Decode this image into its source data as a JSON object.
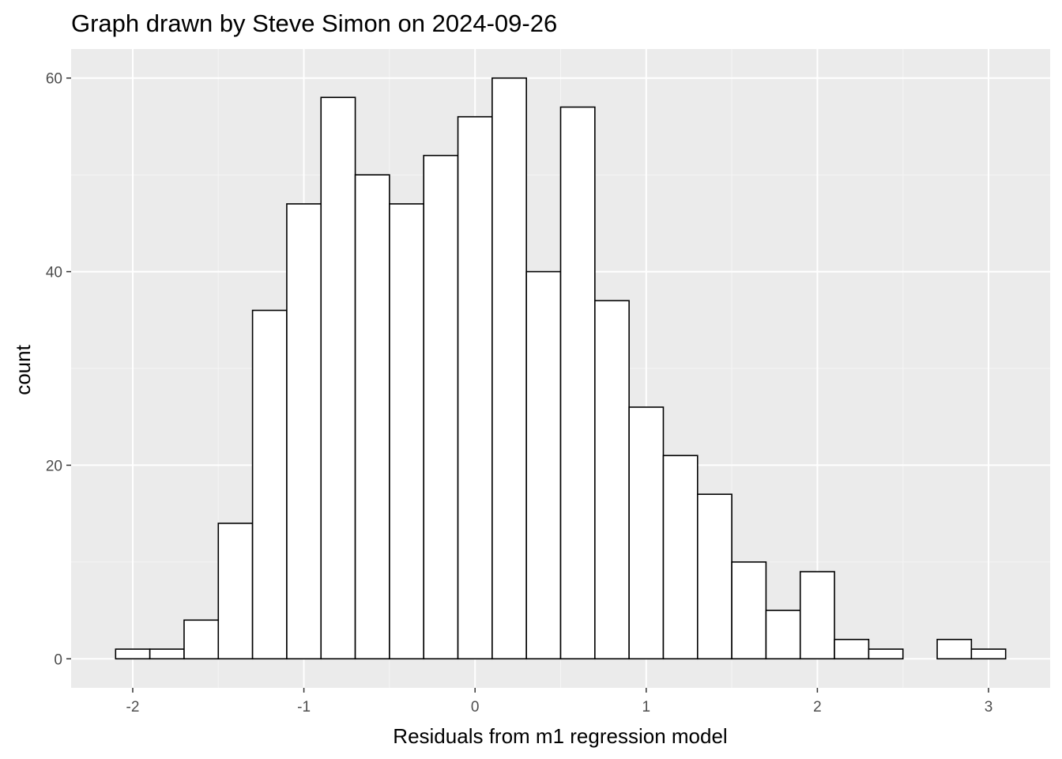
{
  "chart_data": {
    "type": "bar",
    "subtype": "histogram",
    "title": "Graph drawn by Steve Simon on 2024-09-26",
    "xlabel": "Residuals from m1 regression model",
    "ylabel": "count",
    "bin_width": 0.2,
    "bins": [
      {
        "x0": -2.1,
        "x1": -1.9,
        "count": 1
      },
      {
        "x0": -1.9,
        "x1": -1.7,
        "count": 1
      },
      {
        "x0": -1.7,
        "x1": -1.5,
        "count": 4
      },
      {
        "x0": -1.5,
        "x1": -1.3,
        "count": 14
      },
      {
        "x0": -1.3,
        "x1": -1.1,
        "count": 36
      },
      {
        "x0": -1.1,
        "x1": -0.9,
        "count": 47
      },
      {
        "x0": -0.9,
        "x1": -0.7,
        "count": 58
      },
      {
        "x0": -0.7,
        "x1": -0.5,
        "count": 50
      },
      {
        "x0": -0.5,
        "x1": -0.3,
        "count": 47
      },
      {
        "x0": -0.3,
        "x1": -0.1,
        "count": 52
      },
      {
        "x0": -0.1,
        "x1": 0.1,
        "count": 56
      },
      {
        "x0": 0.1,
        "x1": 0.3,
        "count": 60
      },
      {
        "x0": 0.3,
        "x1": 0.5,
        "count": 40
      },
      {
        "x0": 0.5,
        "x1": 0.7,
        "count": 57
      },
      {
        "x0": 0.7,
        "x1": 0.9,
        "count": 37
      },
      {
        "x0": 0.9,
        "x1": 1.1,
        "count": 26
      },
      {
        "x0": 1.1,
        "x1": 1.3,
        "count": 21
      },
      {
        "x0": 1.3,
        "x1": 1.5,
        "count": 17
      },
      {
        "x0": 1.5,
        "x1": 1.7,
        "count": 10
      },
      {
        "x0": 1.7,
        "x1": 1.9,
        "count": 5
      },
      {
        "x0": 1.9,
        "x1": 2.1,
        "count": 9
      },
      {
        "x0": 2.1,
        "x1": 2.3,
        "count": 2
      },
      {
        "x0": 2.3,
        "x1": 2.5,
        "count": 1
      },
      {
        "x0": 2.5,
        "x1": 2.7,
        "count": 0
      },
      {
        "x0": 2.7,
        "x1": 2.9,
        "count": 2
      },
      {
        "x0": 2.9,
        "x1": 3.1,
        "count": 1
      }
    ],
    "xlim": [
      -2.36,
      3.36
    ],
    "ylim": [
      -3,
      63
    ],
    "x_ticks": [
      -2,
      -1,
      0,
      1,
      2,
      3
    ],
    "x_tick_labels": [
      "-2",
      "-1",
      "0",
      "1",
      "2",
      "3"
    ],
    "y_ticks": [
      0,
      20,
      40,
      60
    ],
    "y_tick_labels": [
      "0",
      "20",
      "40",
      "60"
    ],
    "grid": true,
    "colors": {
      "panel_background": "#ebebeb",
      "grid_major": "#ffffff",
      "grid_minor": "#f5f5f5",
      "bar_fill": "#ffffff",
      "bar_outline": "#000000",
      "tick_label": "#4d4d4d",
      "tick_mark": "#333333"
    }
  }
}
